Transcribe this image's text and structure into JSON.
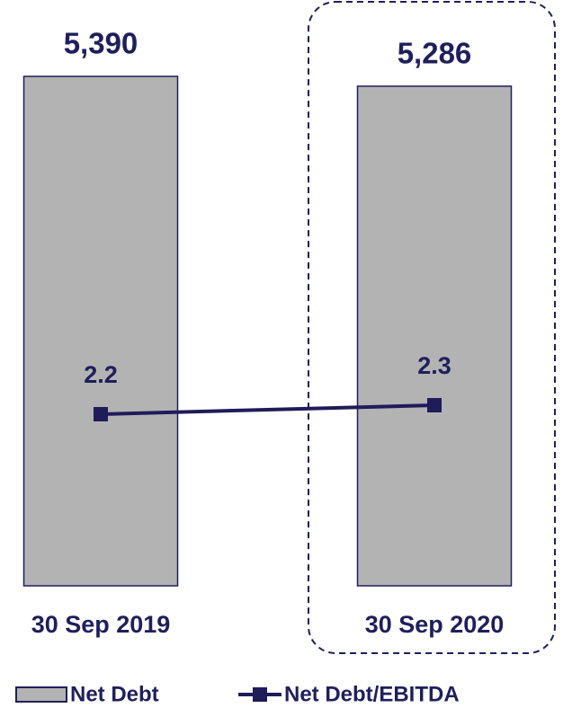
{
  "chart_data": {
    "type": "bar",
    "categories": [
      "30 Sep 2019",
      "30 Sep 2020"
    ],
    "series": [
      {
        "name": "Net Debt",
        "type": "bar",
        "color": "#b3b3b3",
        "values": [
          5390,
          5286
        ],
        "value_labels": [
          "5,390",
          "5,286"
        ]
      },
      {
        "name": "Net Debt/EBITDA",
        "type": "line",
        "axis": "y2",
        "color": "#1f1c5a",
        "values": [
          2.2,
          2.3
        ]
      }
    ],
    "ylim": [
      0,
      5390
    ],
    "y2lim": [
      0.29,
      5.96
    ]
  }
}
